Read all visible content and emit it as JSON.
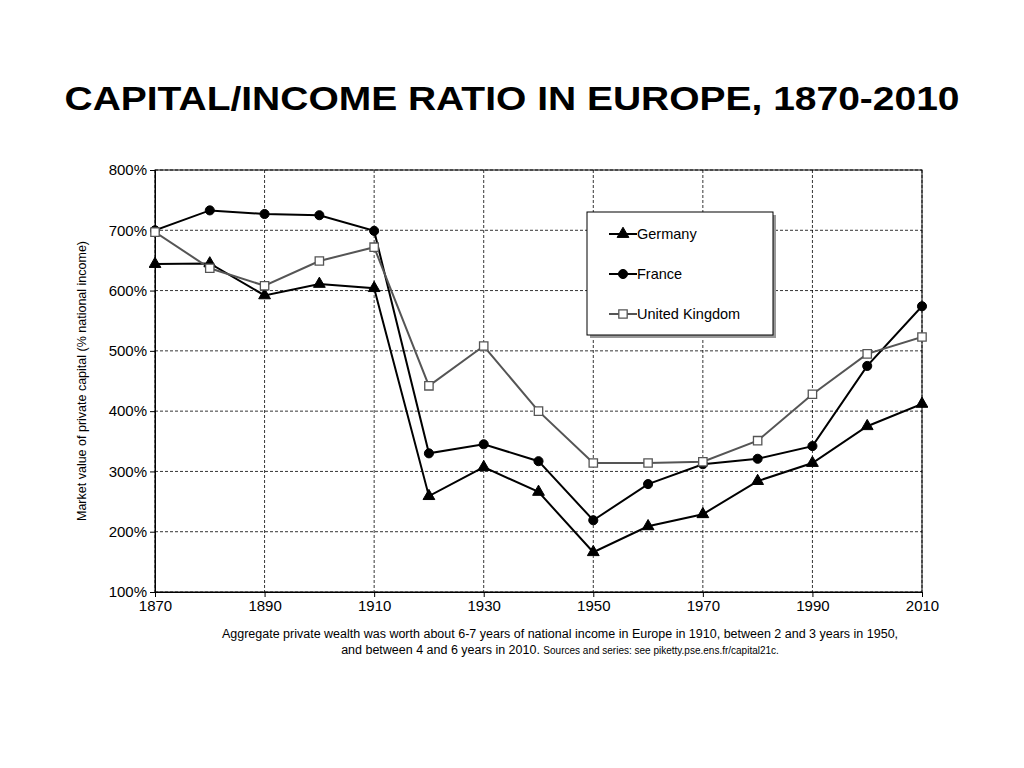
{
  "chart_data": {
    "type": "line",
    "title": "CAPITAL/INCOME RATIO IN EUROPE, 1870-2010",
    "y_label": "Market value of private capital (% national income)",
    "caption": "Aggregate private wealth was worth about 6-7 years of national income in Europe in 1910, between 2 and 3 years in 1950, and between 4 and 6 years in 2010.",
    "source": "Sources and series: see piketty.pse.ens.fr/capital21c.",
    "x": [
      1870,
      1880,
      1890,
      1900,
      1910,
      1920,
      1930,
      1940,
      1950,
      1960,
      1970,
      1980,
      1990,
      2000,
      2010
    ],
    "series": [
      {
        "name": "Germany",
        "color": "#000000",
        "marker": "triangle",
        "values": [
          644,
          645,
          592,
          611,
          604,
          259,
          307,
          266,
          166,
          209,
          229,
          284,
          314,
          375,
          412
        ]
      },
      {
        "name": "France",
        "color": "#000000",
        "marker": "circle",
        "values": [
          700,
          733,
          727,
          725,
          699,
          330,
          345,
          317,
          219,
          279,
          312,
          321,
          342,
          475,
          574
        ]
      },
      {
        "name": "United Kingdom",
        "color": "#555555",
        "marker": "open-square",
        "values": [
          697,
          637,
          608,
          649,
          672,
          442,
          508,
          400,
          314,
          314,
          316,
          351,
          428,
          495,
          523
        ]
      }
    ],
    "xlim": [
      1870,
      2010
    ],
    "xticks": [
      1870,
      1890,
      1910,
      1930,
      1950,
      1970,
      1990,
      2010
    ],
    "ylim": [
      100,
      800
    ],
    "yticks": [
      {
        "value": 100,
        "label": "100%"
      },
      {
        "value": 200,
        "label": "200%"
      },
      {
        "value": 300,
        "label": "300%"
      },
      {
        "value": 400,
        "label": "400%"
      },
      {
        "value": 500,
        "label": "500%"
      },
      {
        "value": 600,
        "label": "600%"
      },
      {
        "value": 700,
        "label": "700%"
      },
      {
        "value": 800,
        "label": "800%"
      }
    ],
    "grid": true,
    "legend": "top-right"
  }
}
